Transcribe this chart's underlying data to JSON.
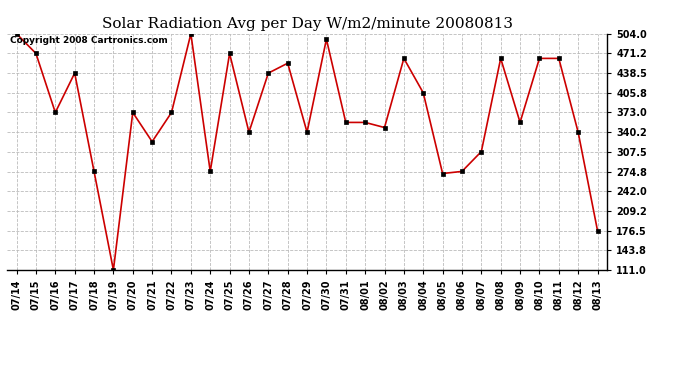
{
  "title": "Solar Radiation Avg per Day W/m2/minute 20080813",
  "copyright_text": "Copyright 2008 Cartronics.com",
  "x_labels": [
    "07/14",
    "07/15",
    "07/16",
    "07/17",
    "07/18",
    "07/19",
    "07/20",
    "07/21",
    "07/22",
    "07/23",
    "07/24",
    "07/25",
    "07/26",
    "07/27",
    "07/28",
    "07/29",
    "07/30",
    "07/31",
    "08/01",
    "08/02",
    "08/03",
    "08/04",
    "08/05",
    "08/06",
    "08/07",
    "08/08",
    "08/09",
    "08/10",
    "08/11",
    "08/12",
    "08/13"
  ],
  "y_values": [
    504.0,
    471.2,
    373.0,
    438.5,
    275.0,
    111.0,
    373.0,
    324.5,
    373.0,
    504.0,
    275.0,
    471.2,
    340.2,
    438.5,
    455.0,
    340.2,
    495.0,
    356.5,
    356.5,
    348.0,
    463.0,
    405.8,
    271.5,
    275.0,
    308.0,
    463.0,
    356.5,
    463.0,
    463.0,
    340.2,
    176.5
  ],
  "line_color": "#cc0000",
  "marker_color": "#000000",
  "background_color": "#ffffff",
  "grid_color": "#bbbbbb",
  "y_ticks": [
    111.0,
    143.8,
    176.5,
    209.2,
    242.0,
    274.8,
    307.5,
    340.2,
    373.0,
    405.8,
    438.5,
    471.2,
    504.0
  ],
  "ylim": [
    111.0,
    504.0
  ],
  "title_fontsize": 11,
  "tick_fontsize": 7,
  "copyright_fontsize": 6.5
}
